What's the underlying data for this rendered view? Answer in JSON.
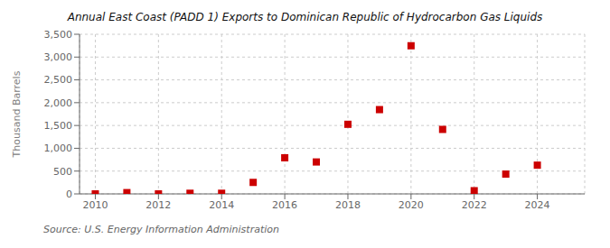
{
  "chart_data": {
    "type": "scatter",
    "title": "Annual East Coast (PADD 1) Exports to Dominican Republic of Hydrocarbon Gas Liquids",
    "ylabel": "Thousand Barrels",
    "annotation": "Source: U.S. Energy Information Administration",
    "x": [
      2010,
      2011,
      2012,
      2013,
      2014,
      2015,
      2016,
      2017,
      2018,
      2019,
      2020,
      2021,
      2022,
      2023,
      2024
    ],
    "values": [
      0,
      28,
      0,
      14,
      14,
      252,
      792,
      700,
      1526,
      1848,
      3248,
      1414,
      70,
      434,
      630
    ],
    "color": "#cc0000",
    "marker": "square",
    "xlim": [
      2009.5,
      2025.5
    ],
    "xticks": [
      2010,
      2012,
      2014,
      2016,
      2018,
      2020,
      2022,
      2024
    ],
    "ylim": [
      0,
      3500
    ],
    "yticks": [
      0,
      500,
      {
        "value": 1000,
        "label": "1,000"
      },
      {
        "value": 1500,
        "label": "1,500"
      },
      {
        "value": 2000,
        "label": "2,000"
      },
      {
        "value": 2500,
        "label": "2,500"
      },
      {
        "value": 3000,
        "label": "3,000"
      },
      {
        "value": 3500,
        "label": "3,500"
      }
    ],
    "grid": true
  }
}
